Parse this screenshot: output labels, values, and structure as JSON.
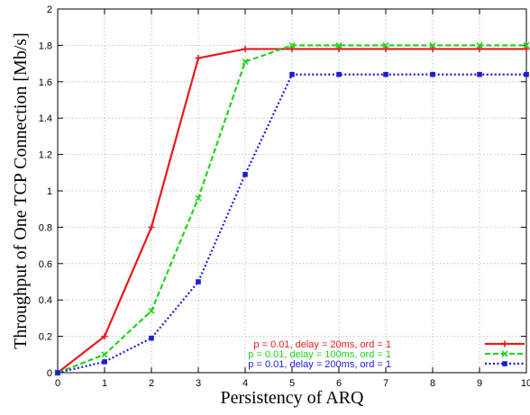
{
  "chart_data": {
    "type": "line",
    "xlabel": "Persistency of ARQ",
    "ylabel": "Throughput of One TCP Connection [Mb/s]",
    "xlim": [
      0,
      10
    ],
    "ylim": [
      0,
      2
    ],
    "x_ticks": [
      "0",
      "1",
      "2",
      "3",
      "4",
      "5",
      "6",
      "7",
      "8",
      "9",
      "10"
    ],
    "y_ticks": [
      "0",
      "0.2",
      "0.4",
      "0.6",
      "0.8",
      "1",
      "1.2",
      "1.4",
      "1.6",
      "1.8",
      "2"
    ],
    "grid": true,
    "legend_position": "bottom-right",
    "x": [
      0,
      1,
      2,
      3,
      4,
      5,
      6,
      7,
      8,
      9,
      10
    ],
    "series": [
      {
        "name": "p = 0.01, delay = 20ms, ord = 1",
        "color": "#e8191c",
        "line_style": "solid",
        "marker": "plus",
        "values": [
          0.0,
          0.2,
          0.8,
          1.73,
          1.78,
          1.78,
          1.78,
          1.78,
          1.78,
          1.78,
          1.78
        ]
      },
      {
        "name": "p = 0.01, delay = 100ms, ord = 1",
        "color": "#21d41f",
        "line_style": "dashed",
        "marker": "cross",
        "values": [
          0.0,
          0.1,
          0.34,
          0.96,
          1.71,
          1.8,
          1.8,
          1.8,
          1.8,
          1.8,
          1.8
        ]
      },
      {
        "name": "p = 0.01, delay = 200ms, ord = 1",
        "color": "#1a1cd6",
        "line_style": "dotted",
        "marker": "square",
        "values": [
          0.0,
          0.06,
          0.19,
          0.5,
          1.09,
          1.64,
          1.64,
          1.64,
          1.64,
          1.64,
          1.64
        ]
      }
    ]
  }
}
